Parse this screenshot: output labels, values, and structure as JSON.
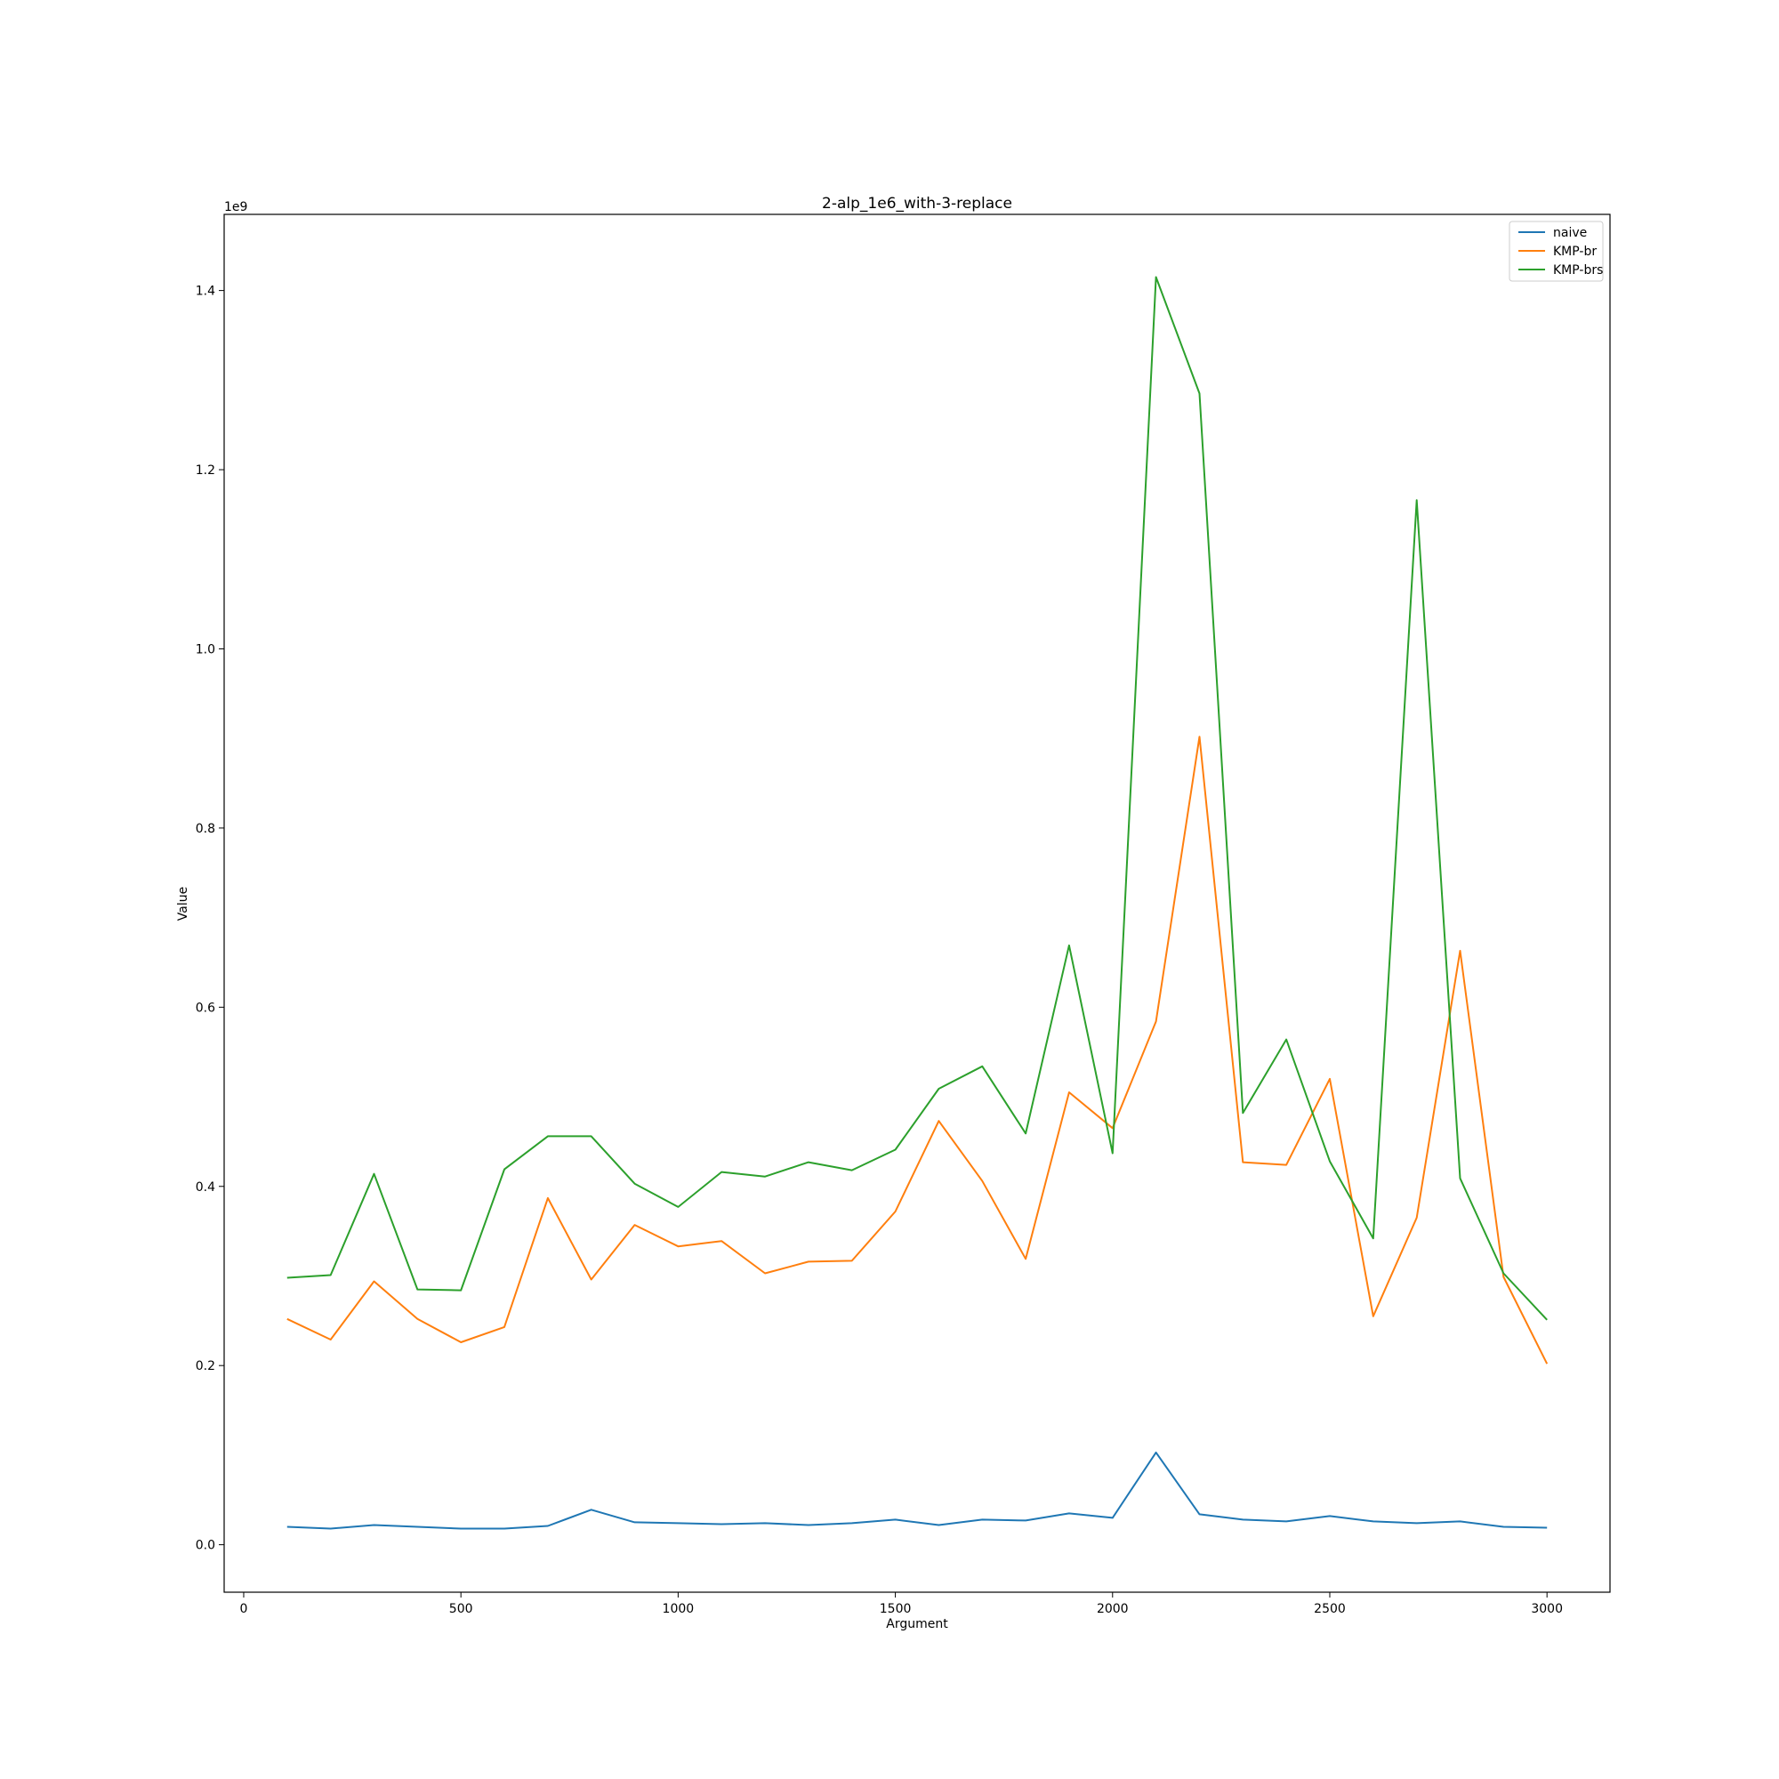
{
  "chart_data": {
    "type": "line",
    "title": "2-alp_1e6_with-3-replace",
    "xlabel": "Argument",
    "ylabel": "Value",
    "y_offset_label": "1e9",
    "xlim": [
      -45,
      3145
    ],
    "ylim": [
      -0.053,
      1.485
    ],
    "x_ticks": [
      0,
      500,
      1000,
      1500,
      2000,
      2500,
      3000
    ],
    "x_tick_labels": [
      "0",
      "500",
      "1000",
      "1500",
      "2000",
      "2500",
      "3000"
    ],
    "y_ticks": [
      0.0,
      0.2,
      0.4,
      0.6,
      0.8,
      1.0,
      1.2,
      1.4
    ],
    "y_tick_labels": [
      "0.0",
      "0.2",
      "0.4",
      "0.6",
      "0.8",
      "1.0",
      "1.2",
      "1.4"
    ],
    "grid": false,
    "legend_position": "top-right",
    "x": [
      100,
      200,
      300,
      400,
      500,
      600,
      700,
      800,
      900,
      1000,
      1100,
      1200,
      1300,
      1400,
      1500,
      1600,
      1700,
      1800,
      1900,
      2000,
      2100,
      2200,
      2300,
      2400,
      2500,
      2600,
      2700,
      2800,
      2900,
      3000
    ],
    "series": [
      {
        "name": "naive",
        "color": "#1f77b4",
        "values": [
          0.02,
          0.018,
          0.022,
          0.02,
          0.018,
          0.018,
          0.021,
          0.039,
          0.025,
          0.024,
          0.023,
          0.024,
          0.022,
          0.024,
          0.028,
          0.022,
          0.028,
          0.027,
          0.035,
          0.03,
          0.103,
          0.034,
          0.028,
          0.026,
          0.032,
          0.026,
          0.024,
          0.026,
          0.02,
          0.019
        ]
      },
      {
        "name": "KMP-br",
        "color": "#ff7f0e",
        "values": [
          0.252,
          0.229,
          0.294,
          0.252,
          0.226,
          0.243,
          0.387,
          0.296,
          0.357,
          0.333,
          0.339,
          0.303,
          0.316,
          0.317,
          0.372,
          0.473,
          0.406,
          0.319,
          0.505,
          0.465,
          0.584,
          0.902,
          0.427,
          0.424,
          0.52,
          0.255,
          0.365,
          0.663,
          0.299,
          0.202
        ]
      },
      {
        "name": "KMP-brs",
        "color": "#2ca02c",
        "values": [
          0.298,
          0.301,
          0.414,
          0.285,
          0.284,
          0.419,
          0.456,
          0.456,
          0.403,
          0.377,
          0.416,
          0.411,
          0.427,
          0.418,
          0.441,
          0.509,
          0.534,
          0.459,
          0.669,
          0.437,
          1.415,
          1.285,
          0.482,
          0.564,
          0.428,
          0.342,
          1.166,
          0.409,
          0.303,
          0.251
        ]
      }
    ]
  }
}
